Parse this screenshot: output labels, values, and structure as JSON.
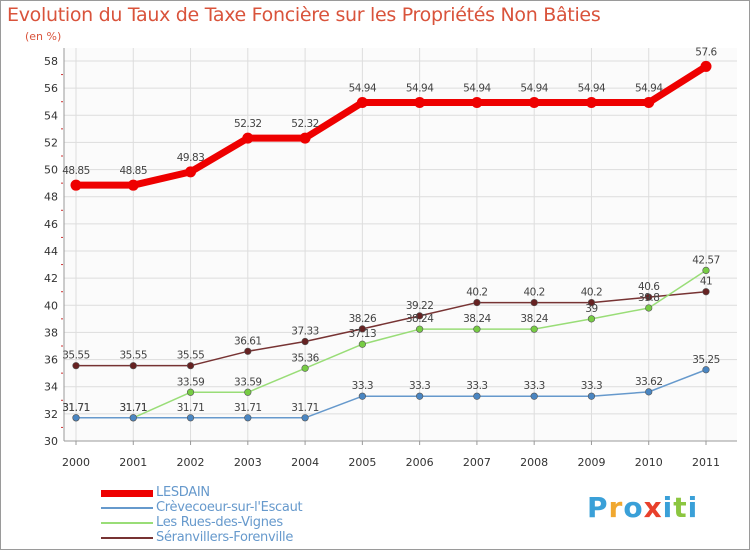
{
  "title": "Evolution du Taux de Taxe Foncière sur les Propriétés Non Bâties",
  "unit_label": "(en %)",
  "brand": {
    "letters": [
      "P",
      "r",
      "o",
      "x",
      "i",
      "t",
      "i"
    ],
    "colors": [
      "#3aa0d8",
      "#f0a830",
      "#3aa0d8",
      "#e8402b",
      "#3aa0d8",
      "#8cc640",
      "#3aa0d8"
    ]
  },
  "chart_data": {
    "type": "line",
    "categories": [
      "2000",
      "2001",
      "2002",
      "2003",
      "2004",
      "2005",
      "2006",
      "2007",
      "2008",
      "2009",
      "2010",
      "2011"
    ],
    "ylim": [
      30,
      58
    ],
    "yticks": [
      "30",
      "32",
      "34",
      "36",
      "38",
      "40",
      "42",
      "44",
      "46",
      "48",
      "50",
      "52",
      "54",
      "56",
      "58"
    ],
    "grid": true,
    "legend_position": "bottom-left",
    "series": [
      {
        "name": "LESDAIN",
        "color": "#ee0000",
        "dot_color": "#ee0000",
        "values": [
          48.85,
          48.85,
          49.83,
          52.32,
          52.32,
          54.94,
          54.94,
          54.94,
          54.94,
          54.94,
          54.94,
          57.6
        ],
        "labels": [
          "48.85",
          "48.85",
          "49.83",
          "52.32",
          "52.32",
          "54.94",
          "54.94",
          "54.94",
          "54.94",
          "54.94",
          "54.94",
          "57.6"
        ]
      },
      {
        "name": "Crèvecoeur-sur-l'Escaut",
        "color": "#6699cc",
        "dot_color": "#4a86c2",
        "values": [
          31.71,
          31.71,
          31.71,
          31.71,
          31.71,
          33.3,
          33.3,
          33.3,
          33.3,
          33.3,
          33.62,
          35.25
        ],
        "labels": [
          "31.71",
          "31.71",
          "31.71",
          "31.71",
          "31.71",
          "33.3",
          "33.3",
          "33.3",
          "33.3",
          "33.3",
          "33.62",
          "35.25"
        ]
      },
      {
        "name": "Les Rues-des-Vignes",
        "color": "#99dd77",
        "dot_color": "#77cc44",
        "values": [
          31.71,
          31.71,
          33.59,
          33.59,
          35.36,
          37.13,
          38.24,
          38.24,
          38.24,
          39,
          39.8,
          42.57
        ],
        "labels": [
          "31.71",
          "31.71",
          "33.59",
          "33.59",
          "35.36",
          "37.13",
          "38.24",
          "38.24",
          "38.24",
          "39",
          "39.8",
          "42.57"
        ]
      },
      {
        "name": "Séranvillers-Forenville",
        "color": "#773333",
        "dot_color": "#662222",
        "values": [
          35.55,
          35.55,
          35.55,
          36.61,
          37.33,
          38.26,
          39.22,
          40.2,
          40.2,
          40.2,
          40.6,
          41
        ],
        "labels": [
          "35.55",
          "35.55",
          "35.55",
          "36.61",
          "37.33",
          "38.26",
          "39.22",
          "40.2",
          "40.2",
          "40.2",
          "40.6",
          "41"
        ]
      }
    ]
  }
}
